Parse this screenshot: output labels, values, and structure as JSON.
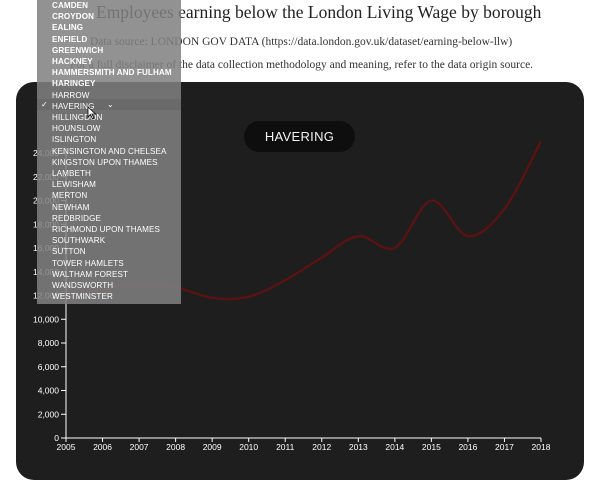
{
  "page": {
    "title": "Employees earning below the London Living Wage by borough",
    "source": "Data source: LONDON GOV DATA (https://data.london.gov.uk/dataset/earning-below-llw)",
    "disclaimer": "For a full disclaimer of the data collection methodology and meaning, refer to the data origin source."
  },
  "badge": {
    "label": "HAVERING"
  },
  "dropdown": {
    "selected": "HAVERING",
    "options": [
      "CAMDEN",
      "CROYDON",
      "EALING",
      "ENFIELD",
      "GREENWICH",
      "HACKNEY",
      "HAMMERSMITH AND FULHAM",
      "HARINGEY",
      "HARROW",
      "HAVERING",
      "HILLINGDON",
      "HOUNSLOW",
      "ISLINGTON",
      "KENSINGTON AND CHELSEA",
      "KINGSTON UPON THAMES",
      "LAMBETH",
      "LEWISHAM",
      "MERTON",
      "NEWHAM",
      "REDBRIDGE",
      "RICHMOND UPON THAMES",
      "SOUTHWARK",
      "SUTTON",
      "TOWER HAMLETS",
      "WALTHAM FOREST",
      "WANDSWORTH",
      "WESTMINSTER"
    ]
  },
  "colors": {
    "panel_bg": "#1e1e1e",
    "line": "#5a1212",
    "axis": "#ffffff",
    "dropdown_bg": "#808080"
  },
  "chart_data": {
    "type": "line",
    "title": "",
    "xlabel": "",
    "ylabel": "",
    "x": [
      2005,
      2006,
      2007,
      2008,
      2009,
      2010,
      2011,
      2012,
      2013,
      2014,
      2015,
      2016,
      2017,
      2018
    ],
    "series": [
      {
        "values": [
          12000,
          12500,
          13100,
          12700,
          11800,
          11900,
          13300,
          15200,
          17000,
          16000,
          20000,
          17000,
          19300,
          25000
        ]
      }
    ],
    "xlim": [
      2005,
      2018
    ],
    "ylim": [
      0,
      24000
    ],
    "x_ticks": [
      "2005",
      "2006",
      "2007",
      "2008",
      "2009",
      "2010",
      "2011",
      "2012",
      "2013",
      "2014",
      "2015",
      "2016",
      "2017",
      "2018"
    ],
    "y_ticks": [
      "0",
      "2,000",
      "4,000",
      "6,000",
      "8,000",
      "10,000",
      "12,000",
      "14,000",
      "16,000",
      "18,000",
      "20,000",
      "22,000",
      "24,000"
    ],
    "grid": false,
    "legend": "none"
  }
}
